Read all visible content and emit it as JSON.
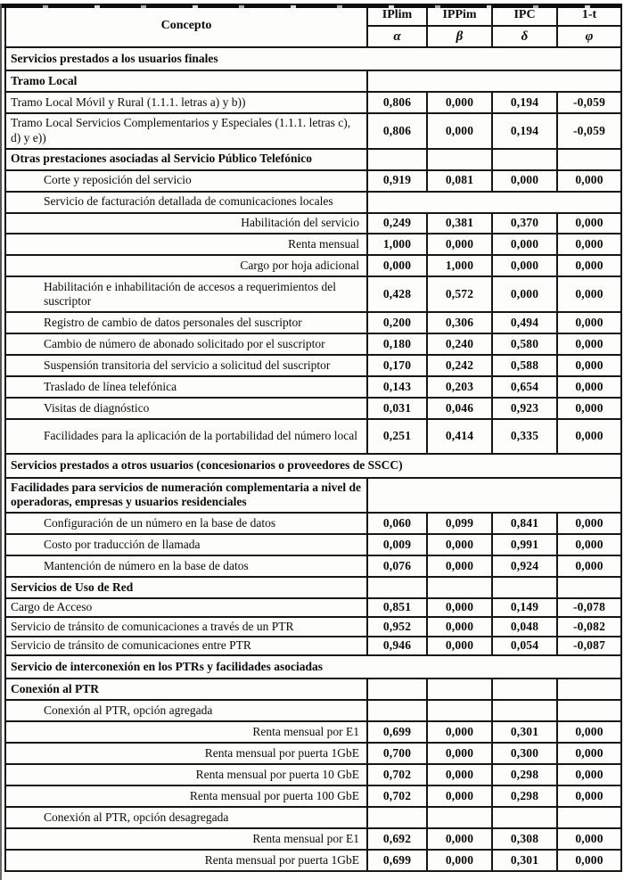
{
  "document": {
    "header": {
      "concepto": "Concepto",
      "columns": [
        {
          "name": "IPlim",
          "symbol": "α"
        },
        {
          "name": "IPPim",
          "symbol": "β"
        },
        {
          "name": "IPC",
          "symbol": "δ"
        },
        {
          "name": "1-t",
          "symbol": "φ"
        }
      ]
    },
    "rows": [
      {
        "type": "section-full",
        "label": "Servicios prestados a los usuarios finales"
      },
      {
        "type": "section",
        "data": "merged",
        "label": "Tramo Local"
      },
      {
        "type": "data",
        "label": "Tramo Local Móvil y Rural (1.1.1. letras a) y b))",
        "values": [
          "0,806",
          "0,000",
          "0,194",
          "-0,059"
        ]
      },
      {
        "type": "data",
        "tall": true,
        "label": "Tramo Local Servicios Complementarios y Especiales (1.1.1. letras c), d) y e))",
        "values": [
          "0,806",
          "0,000",
          "0,194",
          "-0,059"
        ]
      },
      {
        "type": "section",
        "data": "cells",
        "label": "Otras prestaciones asociadas al Servicio Público Telefónico"
      },
      {
        "type": "data",
        "indent": 1,
        "label": "Corte y reposición del servicio",
        "values": [
          "0,919",
          "0,081",
          "0,000",
          "0,000"
        ]
      },
      {
        "type": "sub",
        "data": "merged",
        "indent": 1,
        "label": "Servicio de facturación detallada de comunicaciones locales"
      },
      {
        "type": "data",
        "align": "right",
        "label": "Habilitación del servicio",
        "values": [
          "0,249",
          "0,381",
          "0,370",
          "0,000"
        ]
      },
      {
        "type": "data",
        "align": "right",
        "label": "Renta mensual",
        "values": [
          "1,000",
          "0,000",
          "0,000",
          "0,000"
        ]
      },
      {
        "type": "data",
        "align": "right",
        "label": "Cargo por hoja adicional",
        "values": [
          "0,000",
          "1,000",
          "0,000",
          "0,000"
        ]
      },
      {
        "type": "data",
        "tall": true,
        "indent": 1,
        "label": "Habilitación e inhabilitación de accesos a requerimientos del suscriptor",
        "values": [
          "0,428",
          "0,572",
          "0,000",
          "0,000"
        ]
      },
      {
        "type": "data",
        "indent": 1,
        "label": "Registro de cambio de datos personales del suscriptor",
        "values": [
          "0,200",
          "0,306",
          "0,494",
          "0,000"
        ]
      },
      {
        "type": "data",
        "indent": 1,
        "label": "Cambio de número de abonado solicitado por el suscriptor",
        "values": [
          "0,180",
          "0,240",
          "0,580",
          "0,000"
        ]
      },
      {
        "type": "data",
        "indent": 1,
        "label": "Suspensión transitoria del servicio a solicitud del suscriptor",
        "values": [
          "0,170",
          "0,242",
          "0,588",
          "0,000"
        ]
      },
      {
        "type": "data",
        "indent": 1,
        "label": "Traslado de línea telefónica",
        "values": [
          "0,143",
          "0,203",
          "0,654",
          "0,000"
        ]
      },
      {
        "type": "data",
        "indent": 1,
        "label": "Visitas de diagnóstico",
        "values": [
          "0,031",
          "0,046",
          "0,923",
          "0,000"
        ]
      },
      {
        "type": "data",
        "tall": true,
        "indent": 1,
        "label": "Facilidades para la aplicación de la portabilidad del número local",
        "values": [
          "0,251",
          "0,414",
          "0,335",
          "0,000"
        ]
      },
      {
        "type": "section-full",
        "label": "Servicios prestados a otros usuarios (concesionarios o proveedores de SSCC)"
      },
      {
        "type": "section",
        "data": "merged",
        "tall": true,
        "label": "Facilidades para servicios de numeración complementaria a nivel de operadoras, empresas y usuarios residenciales"
      },
      {
        "type": "data",
        "indent": 1,
        "label": "Configuración de un número en la base de datos",
        "values": [
          "0,060",
          "0,099",
          "0,841",
          "0,000"
        ]
      },
      {
        "type": "data",
        "indent": 1,
        "label": "Costo por traducción de llamada",
        "values": [
          "0,009",
          "0,000",
          "0,991",
          "0,000"
        ]
      },
      {
        "type": "data",
        "indent": 1,
        "label": "Mantención de número en la base de datos",
        "values": [
          "0,076",
          "0,000",
          "0,924",
          "0,000"
        ]
      },
      {
        "type": "section",
        "data": "cells",
        "label": "Servicios de Uso de Red"
      },
      {
        "type": "data",
        "compact": true,
        "label": "Cargo de Acceso",
        "values": [
          "0,851",
          "0,000",
          "0,149",
          "-0,078"
        ]
      },
      {
        "type": "data",
        "compact": true,
        "label": "Servicio de tránsito de comunicaciones a través de un PTR",
        "values": [
          "0,952",
          "0,000",
          "0,048",
          "-0,082"
        ]
      },
      {
        "type": "data",
        "compact": true,
        "label": "Servicio de tránsito de comunicaciones entre PTR",
        "values": [
          "0,946",
          "0,000",
          "0,054",
          "-0,087"
        ]
      },
      {
        "type": "section-full",
        "label": "Servicio de interconexión en los PTRs y facilidades asociadas"
      },
      {
        "type": "section",
        "data": "cells",
        "label": "Conexión al PTR"
      },
      {
        "type": "sub",
        "data": "cells",
        "indent": 1,
        "label": "Conexión al PTR, opción agregada"
      },
      {
        "type": "data",
        "align": "right",
        "label": "Renta mensual por E1",
        "values": [
          "0,699",
          "0,000",
          "0,301",
          "0,000"
        ]
      },
      {
        "type": "data",
        "align": "right",
        "label": "Renta mensual por puerta 1GbE",
        "values": [
          "0,700",
          "0,000",
          "0,300",
          "0,000"
        ]
      },
      {
        "type": "data",
        "align": "right",
        "label": "Renta mensual por puerta 10 GbE",
        "values": [
          "0,702",
          "0,000",
          "0,298",
          "0,000"
        ]
      },
      {
        "type": "data",
        "align": "right",
        "label": "Renta mensual por puerta 100 GbE",
        "values": [
          "0,702",
          "0,000",
          "0,298",
          "0,000"
        ]
      },
      {
        "type": "sub",
        "data": "cells",
        "indent": 1,
        "label": "Conexión al PTR, opción desagregada"
      },
      {
        "type": "data",
        "align": "right",
        "label": "Renta mensual por E1",
        "values": [
          "0,692",
          "0,000",
          "0,308",
          "0,000"
        ]
      },
      {
        "type": "data",
        "align": "right",
        "label": "Renta mensual por puerta 1GbE",
        "values": [
          "0,699",
          "0,000",
          "0,301",
          "0,000"
        ]
      }
    ]
  }
}
